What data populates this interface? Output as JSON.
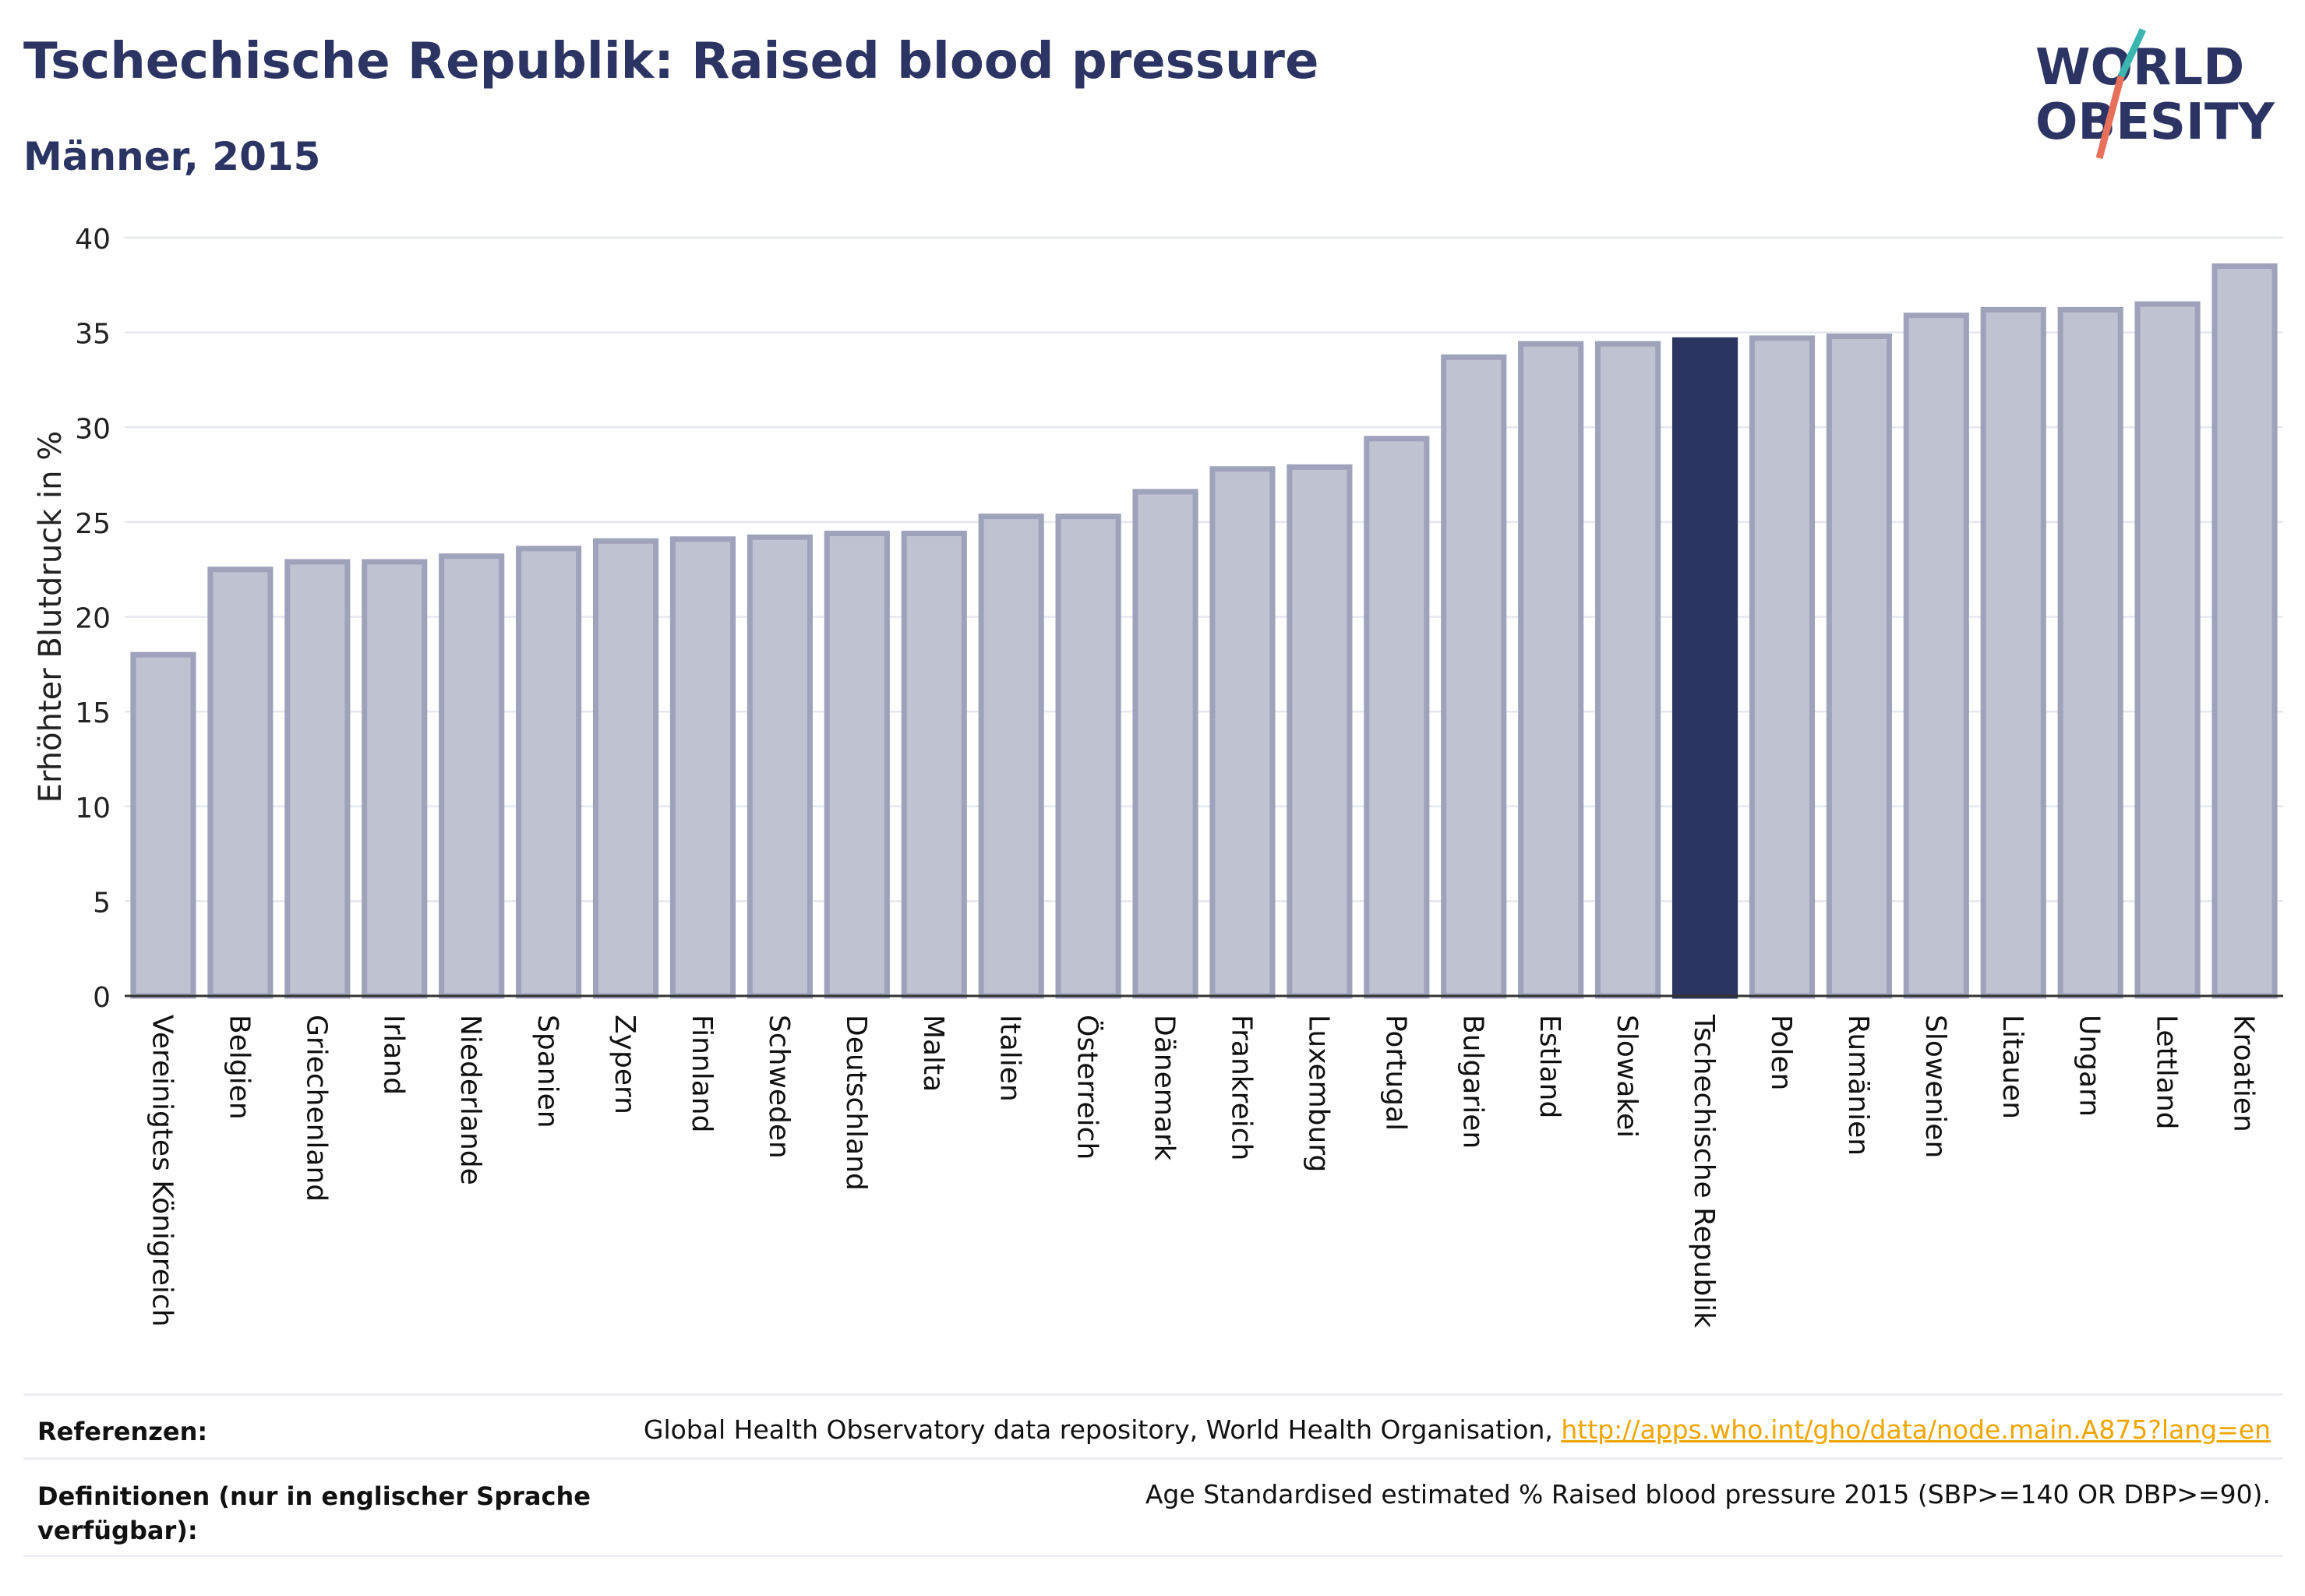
{
  "header": {
    "title": "Tschechische Republik: Raised blood pressure",
    "subtitle": "Männer, 2015"
  },
  "logo": {
    "line1": "WORLD",
    "line2": "OBESITY",
    "colors": {
      "text": "#2b3463",
      "slash_top": "#3ab5b0",
      "slash_bottom": "#e8705a"
    }
  },
  "chart_data": {
    "type": "bar",
    "title": "",
    "xlabel": "",
    "ylabel": "Erhöhter Blutdruck in %",
    "ylim": [
      0,
      40
    ],
    "yticks": [
      0,
      5,
      10,
      15,
      20,
      25,
      30,
      35,
      40
    ],
    "grid": true,
    "highlight": "Tschechische Republik",
    "colors": {
      "bar": "#bfc2d0",
      "bar_edge": "#9ea3bb",
      "highlight": "#2b3561"
    },
    "categories": [
      "Vereinigtes Königreich",
      "Belgien",
      "Griechenland",
      "Irland",
      "Niederlande",
      "Spanien",
      "Zypern",
      "Finnland",
      "Schweden",
      "Deutschland",
      "Malta",
      "Italien",
      "Österreich",
      "Dänemark",
      "Frankreich",
      "Luxemburg",
      "Portugal",
      "Bulgarien",
      "Estland",
      "Slowakei",
      "Tschechische Republik",
      "Polen",
      "Rumänien",
      "Slowenien",
      "Litauen",
      "Ungarn",
      "Lettland",
      "Kroatien"
    ],
    "values": [
      18.0,
      22.5,
      22.9,
      22.9,
      23.2,
      23.6,
      24.0,
      24.1,
      24.2,
      24.4,
      24.4,
      25.3,
      25.3,
      26.6,
      27.8,
      27.9,
      29.4,
      33.7,
      34.4,
      34.4,
      34.6,
      34.7,
      34.8,
      35.9,
      36.2,
      36.2,
      36.5,
      38.5
    ]
  },
  "footer": {
    "references_label": "Referenzen:",
    "references_text": "Global Health Observatory data repository, World Health Organisation, ",
    "references_link": "http://apps.who.int/gho/data/node.main.A875?lang=en",
    "definitions_label": "Definitionen (nur in englischer Sprache verfügbar):",
    "definitions_text": "Age Standardised estimated % Raised blood pressure 2015 (SBP>=140 OR DBP>=90)."
  }
}
